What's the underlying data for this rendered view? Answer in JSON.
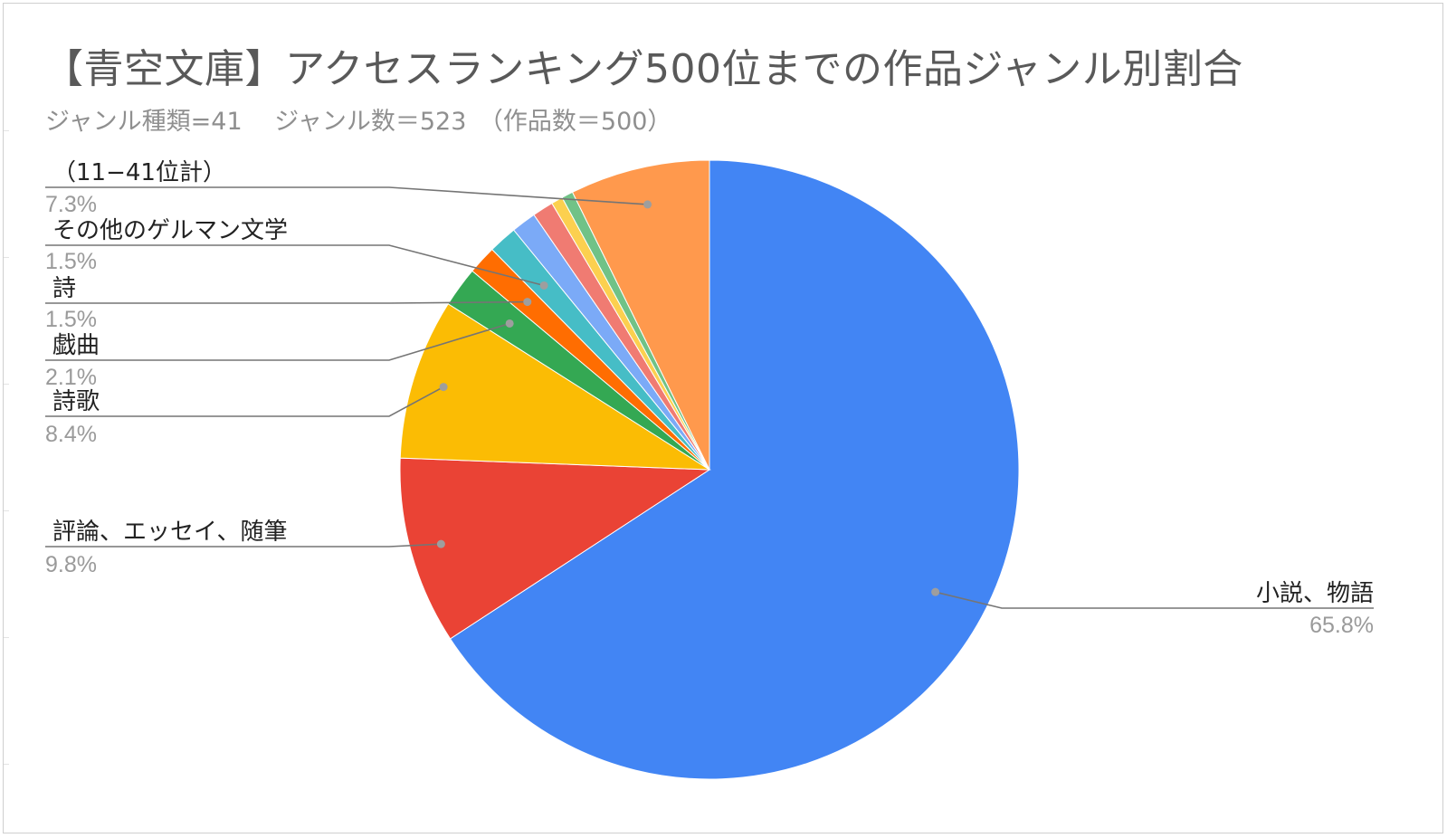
{
  "title": "【青空文庫】アクセスランキング500位までの作品ジャンル別割合",
  "subtitle": "ジャンル種類=41　 ジャンル数＝523　（作品数＝500）",
  "chart_data": {
    "type": "pie",
    "title": "【青空文庫】アクセスランキング500位までの作品ジャンル別割合",
    "subtitle": "ジャンル種類=41　 ジャンル数＝523　（作品数＝500）",
    "start_angle_deg": 0,
    "direction": "clockwise",
    "slices": [
      {
        "name": "小説、物語",
        "value": 65.8,
        "label": "65.8%",
        "color": "#4285f4",
        "labeled": true
      },
      {
        "name": "評論、エッセイ、随筆",
        "value": 9.8,
        "label": "9.8%",
        "color": "#ea4335",
        "labeled": true
      },
      {
        "name": "詩歌",
        "value": 8.4,
        "label": "8.4%",
        "color": "#fbbc04",
        "labeled": true
      },
      {
        "name": "戯曲",
        "value": 2.1,
        "label": "2.1%",
        "color": "#34a853",
        "labeled": true
      },
      {
        "name": "詩",
        "value": 1.5,
        "label": "1.5%",
        "color": "#ff6d01",
        "labeled": true
      },
      {
        "name": "その他のゲルマン文学",
        "value": 1.5,
        "label": "1.5%",
        "color": "#46bdc6",
        "labeled": true
      },
      {
        "name": "",
        "value": 1.3,
        "label": "",
        "color": "#7baaf7",
        "labeled": false
      },
      {
        "name": "",
        "value": 1.1,
        "label": "",
        "color": "#f07b72",
        "labeled": false
      },
      {
        "name": "",
        "value": 0.6,
        "label": "",
        "color": "#fcd04f",
        "labeled": false
      },
      {
        "name": "",
        "value": 0.6,
        "label": "",
        "color": "#71c287",
        "labeled": false
      },
      {
        "name": "（11−41位計）",
        "value": 7.3,
        "label": "7.3%",
        "color": "#ff994d",
        "labeled": true
      }
    ],
    "legend": "none"
  }
}
